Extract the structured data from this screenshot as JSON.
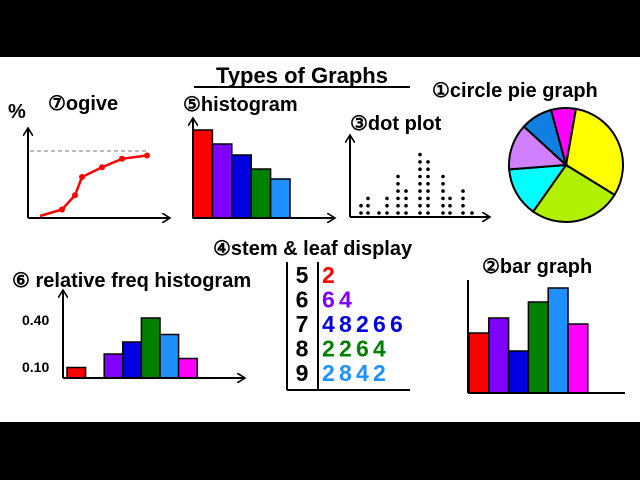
{
  "title": "Types of Graphs",
  "colors": {
    "red": "#ff0000",
    "violet": "#8000ff",
    "blue": "#0000e0",
    "green": "#008000",
    "lightblue": "#1e90ff",
    "magenta": "#ff00ff",
    "yellow": "#ffff00",
    "yellowgreen": "#b0f000",
    "cyan": "#00ffff",
    "lilac": "#d080ff",
    "pieblue": "#1080e0"
  },
  "chart_data": [
    {
      "id": "ogive",
      "type": "line",
      "title": "⑦ogive",
      "ylabel": "%",
      "x": [
        1,
        2,
        3,
        4,
        5,
        6,
        7
      ],
      "values": [
        0,
        10,
        32,
        60,
        75,
        88,
        93
      ],
      "reference_line": 100,
      "color": "#ff0000"
    },
    {
      "id": "histogram",
      "type": "bar",
      "title": "⑤histogram",
      "values": [
        88,
        74,
        63,
        49,
        39
      ],
      "colors": [
        "#ff0000",
        "#8000ff",
        "#0000e0",
        "#008000",
        "#1e90ff"
      ]
    },
    {
      "id": "dot_plot",
      "type": "scatter",
      "title": "③dot plot",
      "counts": [
        2,
        3,
        1,
        3,
        6,
        4,
        9,
        8,
        6,
        3,
        4,
        1
      ]
    },
    {
      "id": "pie",
      "type": "pie",
      "title": "①circle pie graph",
      "values": [
        31,
        26,
        14,
        13,
        9,
        7
      ],
      "colors": [
        "#ffff00",
        "#b0f000",
        "#00ffff",
        "#d080ff",
        "#1080e0",
        "#ff00ff"
      ]
    },
    {
      "id": "relative_freq_histogram",
      "type": "bar",
      "title": "⑥ relative freq histogram",
      "yticks": [
        "0.40",
        "0.10"
      ],
      "categories": [
        1,
        2,
        3,
        4,
        5,
        6,
        7
      ],
      "values": [
        0.07,
        0,
        0.16,
        0.24,
        0.4,
        0.29,
        0.13
      ],
      "colors": [
        "#ff0000",
        null,
        "#8000ff",
        "#0000e0",
        "#008000",
        "#1e90ff",
        "#ff00ff"
      ]
    },
    {
      "id": "stem_leaf",
      "type": "table",
      "title": "④stem & leaf display",
      "rows": [
        {
          "stem": "5",
          "leaves": [
            "2"
          ],
          "color": "#ff0000"
        },
        {
          "stem": "6",
          "leaves": [
            "6",
            "4"
          ],
          "color": "#8000ff"
        },
        {
          "stem": "7",
          "leaves": [
            "4",
            "8",
            "2",
            "6",
            "6"
          ],
          "color": "#0000e0"
        },
        {
          "stem": "8",
          "leaves": [
            "2",
            "2",
            "6",
            "4"
          ],
          "color": "#008000"
        },
        {
          "stem": "9",
          "leaves": [
            "2",
            "8",
            "4",
            "2"
          ],
          "color": "#1e90ff"
        }
      ]
    },
    {
      "id": "bar_graph",
      "type": "bar",
      "title": "②bar graph",
      "values": [
        60,
        75,
        42,
        91,
        105,
        69
      ],
      "colors": [
        "#ff0000",
        "#8000ff",
        "#0000e0",
        "#008000",
        "#1e90ff",
        "#ff00ff"
      ]
    }
  ]
}
